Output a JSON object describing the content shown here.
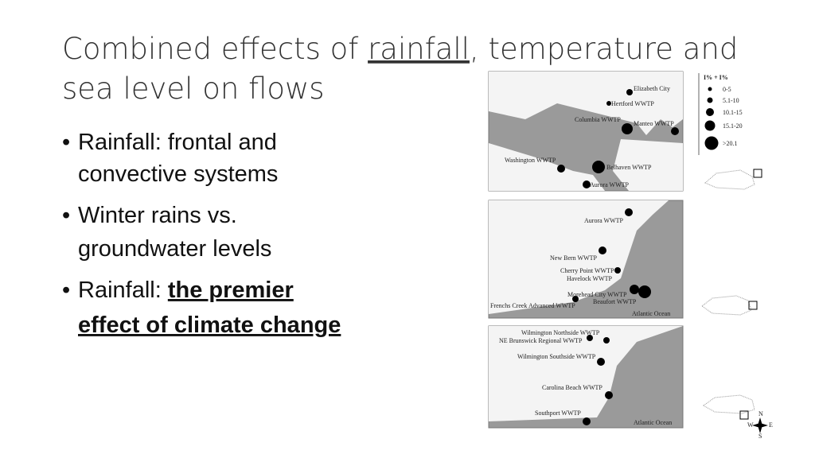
{
  "header": {
    "title_parts": [
      "Combined effects of ",
      "rainfall",
      ", temperature and"
    ],
    "title_line2": "sea level on flows"
  },
  "bullets": [
    {
      "lines": [
        "Rainfall: frontal and",
        "convective systems"
      ]
    },
    {
      "lines": [
        "Winter rains vs.",
        "groundwater levels"
      ]
    },
    {
      "prefix": "Rainfall: ",
      "emphasis_lines": [
        "the premier",
        "effect of climate change"
      ]
    }
  ],
  "legend": {
    "title": "I% + I%",
    "classes": [
      "0-5",
      "5.1-10",
      "10.1-15",
      "15.1-20",
      ">20.1"
    ]
  },
  "maps": [
    {
      "labels": [
        "Elizabeth City",
        "Hertford WWTP",
        "Columbia WWTP",
        "Manteo WWTP",
        "Washington WWTP",
        "Belhaven WWTP",
        "Aurora WWTP"
      ]
    },
    {
      "labels": [
        "Aurora WWTP",
        "New Bern WWTP",
        "Cherry Point WWTP",
        "Havelock WWTP",
        "Morehead City WWTP",
        "Beaufort WWTP",
        "Frenchs Creek Advanced WWTP",
        "Atlantic Ocean"
      ]
    },
    {
      "labels": [
        "Wilmington Northside WWTP",
        "NE Brunswick Regional WWTP",
        "Wilmington Southside WWTP",
        "Carolina Beach WWTP",
        "Southport WWTP",
        "Atlantic Ocean"
      ]
    }
  ],
  "compass": [
    "N",
    "E",
    "S",
    "W"
  ]
}
